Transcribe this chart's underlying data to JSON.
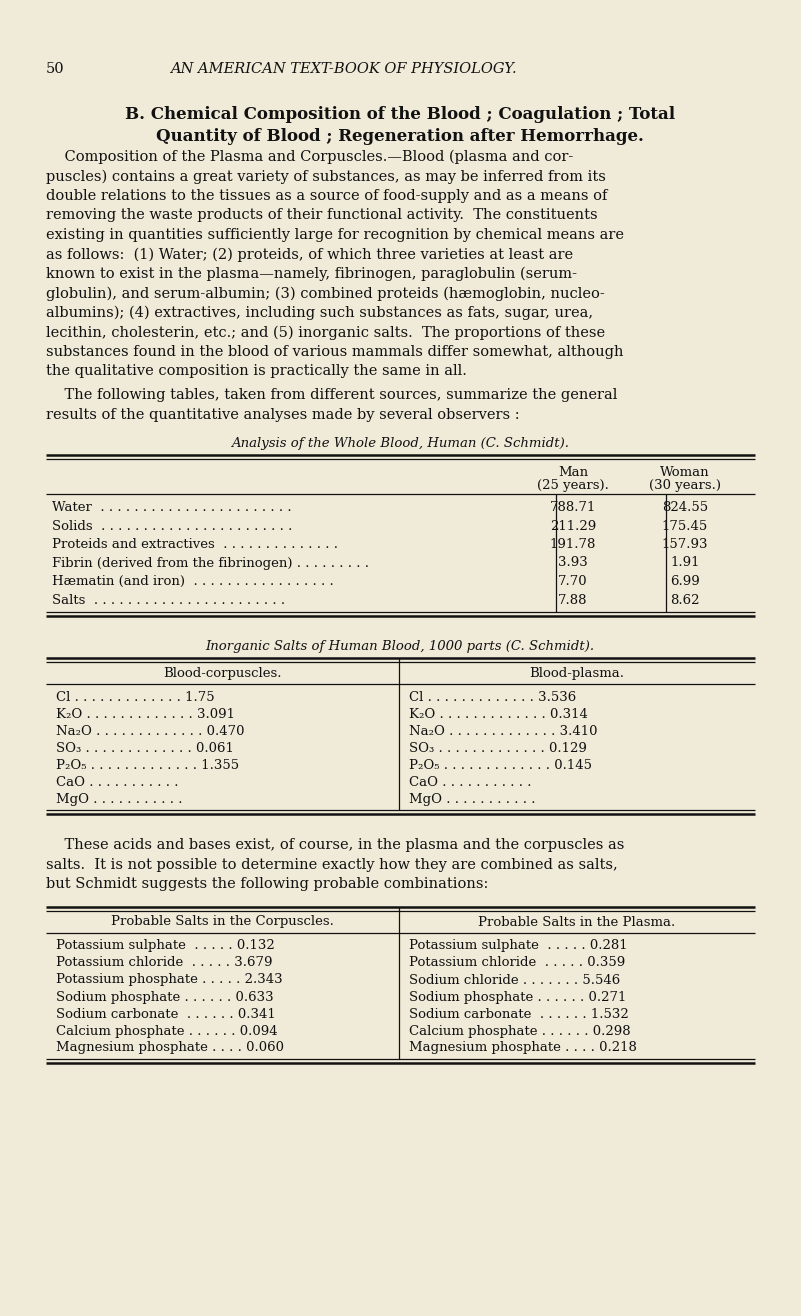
{
  "bg_color": "#f0ead8",
  "text_color": "#1a1a1a",
  "page_number": "50",
  "header": "AN AMERICAN TEXT-BOOK OF PHYSIOLOGY.",
  "section_title_line1": "B. Chemical Composition of the Blood ; Coagulation ; Total",
  "section_title_line2": "Quantity of Blood ; Regeneration after Hemorrhage.",
  "para1_lines": [
    "    Composition of the Plasma and Corpuscles.—Blood (plasma and cor-",
    "puscles) contains a great variety of substances, as may be inferred from its",
    "double relations to the tissues as a source of food-supply and as a means of",
    "removing the waste products of their functional activity.  The constituents",
    "existing in quantities sufficiently large for recognition by chemical means are",
    "as follows:  (1) Water; (2) proteids, of which three varieties at least are",
    "known to exist in the plasma—namely, fibrinogen, paraglobulin (serum-",
    "globulin), and serum-albumin; (3) combined proteids (hæmoglobin, nucleo-",
    "albumins); (4) extractives, including such substances as fats, sugar, urea,",
    "lecithin, cholesterin, etc.; and (5) inorganic salts.  The proportions of these",
    "substances found in the blood of various mammals differ somewhat, although",
    "the qualitative composition is practically the same in all."
  ],
  "para2_lines": [
    "    The following tables, taken from different sources, summarize the general",
    "results of the quantitative analyses made by several observers :"
  ],
  "table1_title": "Analysis of the Whole Blood, Human (C. Schmidt).",
  "table1_col1a": "Man",
  "table1_col1b": "(25 years).",
  "table1_col2a": "Woman",
  "table1_col2b": "(30 years.)",
  "table1_rows": [
    [
      "Water  . . . . . . . . . . . . . . . . . . . . . . .",
      "788.71",
      "824.55"
    ],
    [
      "Solids  . . . . . . . . . . . . . . . . . . . . . . .",
      "211.29",
      "175.45"
    ],
    [
      "Proteids and extractives  . . . . . . . . . . . . . .",
      "191.78",
      "157.93"
    ],
    [
      "Fibrin (derived from the fibrinogen) . . . . . . . . .",
      "3.93",
      "1.91"
    ],
    [
      "Hæmatin (and iron)  . . . . . . . . . . . . . . . . .",
      "7.70",
      "6.99"
    ],
    [
      "Salts  . . . . . . . . . . . . . . . . . . . . . . .",
      "7.88",
      "8.62"
    ]
  ],
  "table2_title": "Inorganic Salts of Human Blood, 1000 parts (C. Schmidt).",
  "table2_col_left": "Blood-corpuscles.",
  "table2_col_right": "Blood-plasma.",
  "table2_left": [
    [
      "Cl",
      "1.75"
    ],
    [
      "K₂O",
      "3.091"
    ],
    [
      "Na₂O",
      "0.470"
    ],
    [
      "SO₃",
      "0.061"
    ],
    [
      "P₂O₅",
      "1.355"
    ],
    [
      "CaO",
      ""
    ],
    [
      "MgO",
      ""
    ]
  ],
  "table2_right": [
    [
      "Cl",
      "3.536"
    ],
    [
      "K₂O",
      "0.314"
    ],
    [
      "Na₂O",
      "3.410"
    ],
    [
      "SO₃",
      "0.129"
    ],
    [
      "P₂O₅",
      "0.145"
    ],
    [
      "CaO",
      ""
    ],
    [
      "MgO",
      ""
    ]
  ],
  "para3_lines": [
    "    These acids and bases exist, of course, in the plasma and the corpuscles as",
    "salts.  It is not possible to determine exactly how they are combined as salts,",
    "but Schmidt suggests the following probable combinations:"
  ],
  "table3_col_left": "Probable Salts in the Corpuscles.",
  "table3_col_right": "Probable Salts in the Plasma.",
  "table3_left": [
    [
      "Potassium sulphate  . . . . . 0.132"
    ],
    [
      "Potassium chloride  . . . . . 3.679"
    ],
    [
      "Potassium phosphate . . . . . 2.343"
    ],
    [
      "Sodium phosphate . . . . . . 0.633"
    ],
    [
      "Sodium carbonate  . . . . . . 0.341"
    ],
    [
      "Calcium phosphate . . . . . . 0.094"
    ],
    [
      "Magnesium phosphate . . . . 0.060"
    ]
  ],
  "table3_right": [
    [
      "Potassium sulphate  . . . . . 0.281"
    ],
    [
      "Potassium chloride  . . . . . 0.359"
    ],
    [
      "Sodium chloride . . . . . . . 5.546"
    ],
    [
      "Sodium phosphate . . . . . . 0.271"
    ],
    [
      "Sodium carbonate  . . . . . . 1.532"
    ],
    [
      "Calcium phosphate . . . . . . 0.298"
    ],
    [
      "Magnesium phosphate . . . . 0.218"
    ]
  ]
}
